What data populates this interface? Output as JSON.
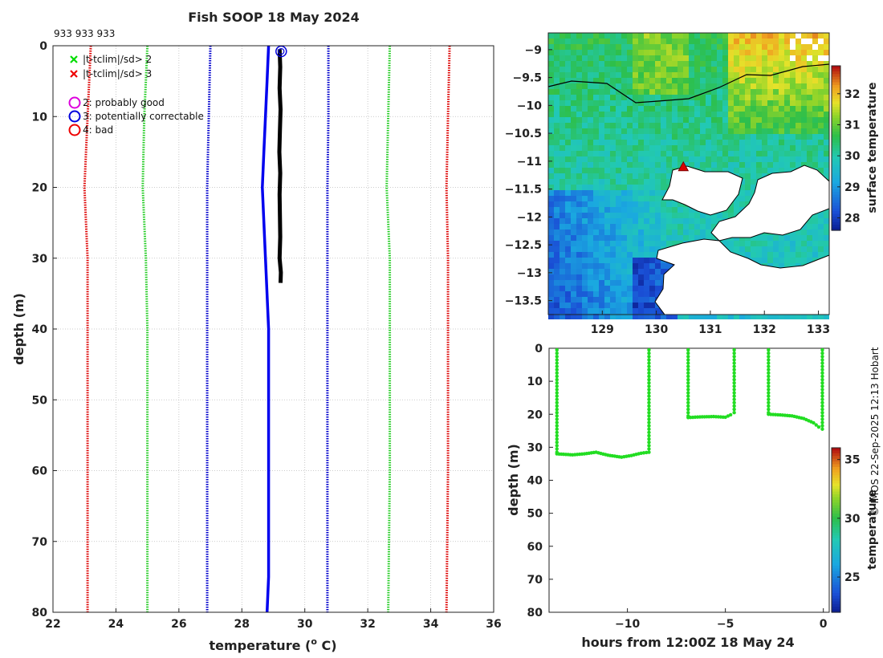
{
  "header": {
    "title": "Fish SOOP 18 May 2024",
    "ids": "933 933 933",
    "credit": "© IMOS 22-Sep-2025 12:13 Hobart"
  },
  "chart_data": [
    {
      "name": "profile",
      "type": "line",
      "xlabel": "temperature (",
      "xlabel_sup": "o",
      "xlabel_tail": " C)",
      "ylabel": "depth (m)",
      "xlim": [
        22,
        36
      ],
      "ylim": [
        0,
        80
      ],
      "y_reversed": true,
      "xticks": [
        22,
        24,
        26,
        28,
        30,
        32,
        34,
        36
      ],
      "yticks": [
        0,
        10,
        20,
        30,
        40,
        50,
        60,
        70,
        80
      ],
      "grid": true,
      "legend": [
        {
          "marker": "x",
          "color": "#00dd00",
          "label": "|t-tclim|/sd> 2"
        },
        {
          "marker": "x",
          "color": "#ee0000",
          "label": "|t-tclim|/sd> 3"
        },
        {
          "marker": "o",
          "color": "#dd00dd",
          "label": "2: probably good"
        },
        {
          "marker": "o",
          "color": "#0000dd",
          "label": "3: potentially correctable"
        },
        {
          "marker": "o",
          "color": "#ee0000",
          "label": "4: bad"
        }
      ],
      "series": [
        {
          "name": "clim -3sd",
          "color": "#dd0000",
          "style": "dotted",
          "points": [
            [
              23.2,
              0
            ],
            [
              23.1,
              10
            ],
            [
              23.0,
              20
            ],
            [
              23.1,
              30
            ],
            [
              23.1,
              40
            ],
            [
              23.1,
              60
            ],
            [
              23.1,
              80
            ]
          ]
        },
        {
          "name": "clim -2sd",
          "color": "#22cc22",
          "style": "dotted",
          "points": [
            [
              25.0,
              0
            ],
            [
              24.95,
              5
            ],
            [
              24.9,
              10
            ],
            [
              24.85,
              20
            ],
            [
              24.95,
              30
            ],
            [
              25.0,
              40
            ],
            [
              25.0,
              60
            ],
            [
              25.0,
              80
            ]
          ]
        },
        {
          "name": "clim -1sd",
          "color": "#0000cc",
          "style": "dotted",
          "points": [
            [
              27.0,
              0
            ],
            [
              26.95,
              10
            ],
            [
              26.9,
              20
            ],
            [
              26.9,
              30
            ],
            [
              26.9,
              40
            ],
            [
              26.9,
              60
            ],
            [
              26.9,
              80
            ]
          ]
        },
        {
          "name": "clim mean",
          "color": "#0000ee",
          "style": "solid",
          "points": [
            [
              28.85,
              0
            ],
            [
              28.8,
              5
            ],
            [
              28.75,
              10
            ],
            [
              28.7,
              15
            ],
            [
              28.65,
              20
            ],
            [
              28.75,
              30
            ],
            [
              28.85,
              40
            ],
            [
              28.85,
              60
            ],
            [
              28.85,
              75
            ],
            [
              28.8,
              80
            ]
          ]
        },
        {
          "name": "clim +1sd",
          "color": "#0000cc",
          "style": "dotted",
          "points": [
            [
              30.75,
              0
            ],
            [
              30.75,
              10
            ],
            [
              30.72,
              20
            ],
            [
              30.72,
              30
            ],
            [
              30.72,
              40
            ],
            [
              30.72,
              60
            ],
            [
              30.72,
              80
            ]
          ]
        },
        {
          "name": "clim +2sd",
          "color": "#22cc22",
          "style": "dotted",
          "points": [
            [
              32.7,
              0
            ],
            [
              32.65,
              10
            ],
            [
              32.6,
              20
            ],
            [
              32.7,
              30
            ],
            [
              32.7,
              40
            ],
            [
              32.7,
              60
            ],
            [
              32.65,
              80
            ]
          ]
        },
        {
          "name": "clim +3sd",
          "color": "#dd0000",
          "style": "dotted",
          "points": [
            [
              34.6,
              0
            ],
            [
              34.55,
              10
            ],
            [
              34.5,
              20
            ],
            [
              34.55,
              30
            ],
            [
              34.55,
              40
            ],
            [
              34.55,
              60
            ],
            [
              34.5,
              80
            ]
          ]
        },
        {
          "name": "observed",
          "color": "#000000",
          "style": "solid",
          "points": [
            [
              29.2,
              0.5
            ],
            [
              29.22,
              3
            ],
            [
              29.2,
              6
            ],
            [
              29.23,
              9
            ],
            [
              29.21,
              12
            ],
            [
              29.19,
              15
            ],
            [
              29.22,
              18
            ],
            [
              29.2,
              21
            ],
            [
              29.21,
              24
            ],
            [
              29.22,
              27
            ],
            [
              29.2,
              30
            ],
            [
              29.24,
              32
            ],
            [
              29.23,
              33.5
            ]
          ]
        }
      ],
      "flags": [
        {
          "x": 29.25,
          "y": 0.8,
          "color": "#0000dd"
        }
      ]
    },
    {
      "name": "map",
      "type": "heatmap",
      "xlim": [
        128.0,
        133.2
      ],
      "ylim": [
        -13.75,
        -8.7
      ],
      "xticks": [
        129,
        130,
        131,
        132,
        133
      ],
      "yticks": [
        -9,
        -9.5,
        -10,
        -10.5,
        -11,
        -11.5,
        -12,
        -12.5,
        -13,
        -13.5
      ],
      "colorbar_label": "surface temperature",
      "colorbar_range": [
        27.6,
        32.9
      ],
      "colorbar_ticks": [
        28,
        29,
        30,
        31,
        32
      ],
      "track_marker": {
        "lon": 130.5,
        "lat": -11.1,
        "color": "#dd0000"
      }
    },
    {
      "name": "timeseries",
      "type": "scatter",
      "xlabel": "hours from 12:00Z 18 May 24",
      "ylabel": "depth (m)",
      "xlim": [
        -14,
        0.3
      ],
      "ylim": [
        0,
        80
      ],
      "y_reversed": true,
      "xticks": [
        -10,
        -5,
        0
      ],
      "yticks": [
        0,
        10,
        20,
        30,
        40,
        50,
        60,
        70,
        80
      ],
      "colorbar_label": "temperature",
      "colorbar_range": [
        22,
        36
      ],
      "colorbar_ticks": [
        25,
        30,
        35
      ],
      "color": "#22dd22",
      "casts": [
        {
          "down": [
            -13.6,
            0.5,
            32
          ],
          "bottom": [
            [
              -13.6,
              32
            ],
            [
              -12.8,
              32.3
            ],
            [
              -12.2,
              32
            ],
            [
              -11.6,
              31.5
            ],
            [
              -11,
              32.4
            ],
            [
              -10.3,
              33
            ],
            [
              -9.8,
              32.5
            ],
            [
              -9.3,
              31.8
            ],
            [
              -8.9,
              31.5
            ]
          ],
          "up": [
            -8.9,
            31.5,
            0.5
          ]
        },
        {
          "down": [
            -6.9,
            0.5,
            21
          ],
          "bottom": [
            [
              -6.9,
              21
            ],
            [
              -6.3,
              20.8
            ],
            [
              -5.6,
              20.7
            ],
            [
              -5.0,
              20.9
            ],
            [
              -4.6,
              19.8
            ]
          ],
          "up": [
            -4.55,
            19.5,
            0.5
          ]
        },
        {
          "down": [
            -2.8,
            0.5,
            20
          ],
          "bottom": [
            [
              -2.8,
              20
            ],
            [
              -2.2,
              20.2
            ],
            [
              -1.6,
              20.5
            ],
            [
              -1.0,
              21.3
            ],
            [
              -0.5,
              22.6
            ],
            [
              -0.1,
              24.5
            ]
          ],
          "up": [
            -0.05,
            24.5,
            0.5
          ]
        }
      ]
    }
  ]
}
